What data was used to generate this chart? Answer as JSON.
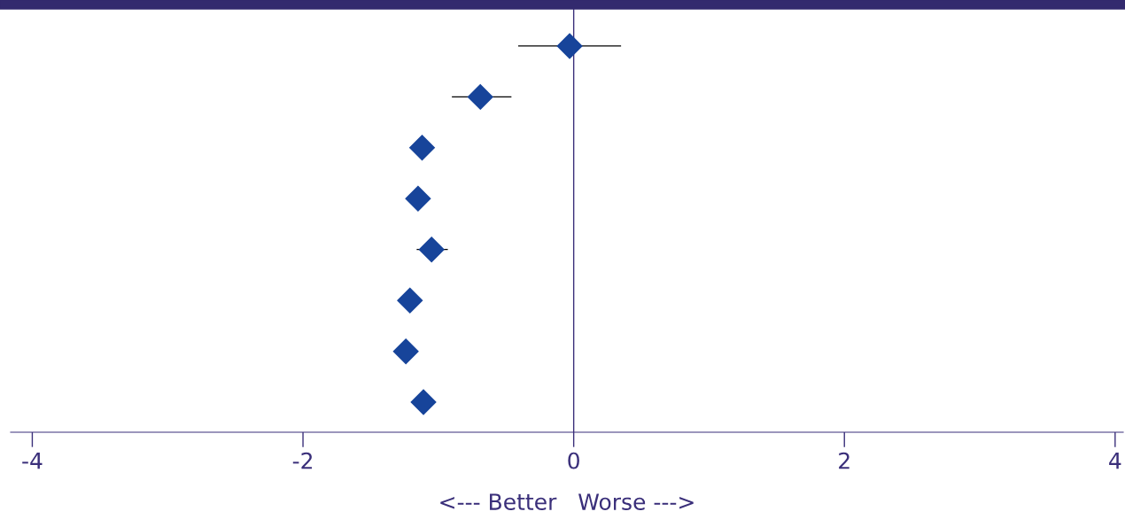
{
  "chart_data": {
    "type": "scatter",
    "orientation": "horizontal",
    "xlabel": "<--- Better   Worse --->",
    "categories": [
      null,
      null,
      null,
      null,
      null,
      null,
      null,
      null
    ],
    "values": [
      -0.03,
      -0.69,
      -1.12,
      -1.15,
      -1.05,
      -1.21,
      -1.24,
      -1.11
    ],
    "errors": [
      [
        -0.41,
        0.35
      ],
      [
        -0.9,
        -0.46
      ],
      null,
      null,
      [
        -1.16,
        -0.93
      ],
      null,
      null,
      null
    ],
    "color": "#17449a",
    "marker": "diamond",
    "xlim": [
      -4.16,
      4.06
    ],
    "xticks": [
      -4,
      -2,
      0,
      2,
      4
    ],
    "ref_lines": [
      {
        "axis": "x",
        "value": 0,
        "color": "#3a2f7a"
      }
    ],
    "grid": false,
    "legend": false
  }
}
